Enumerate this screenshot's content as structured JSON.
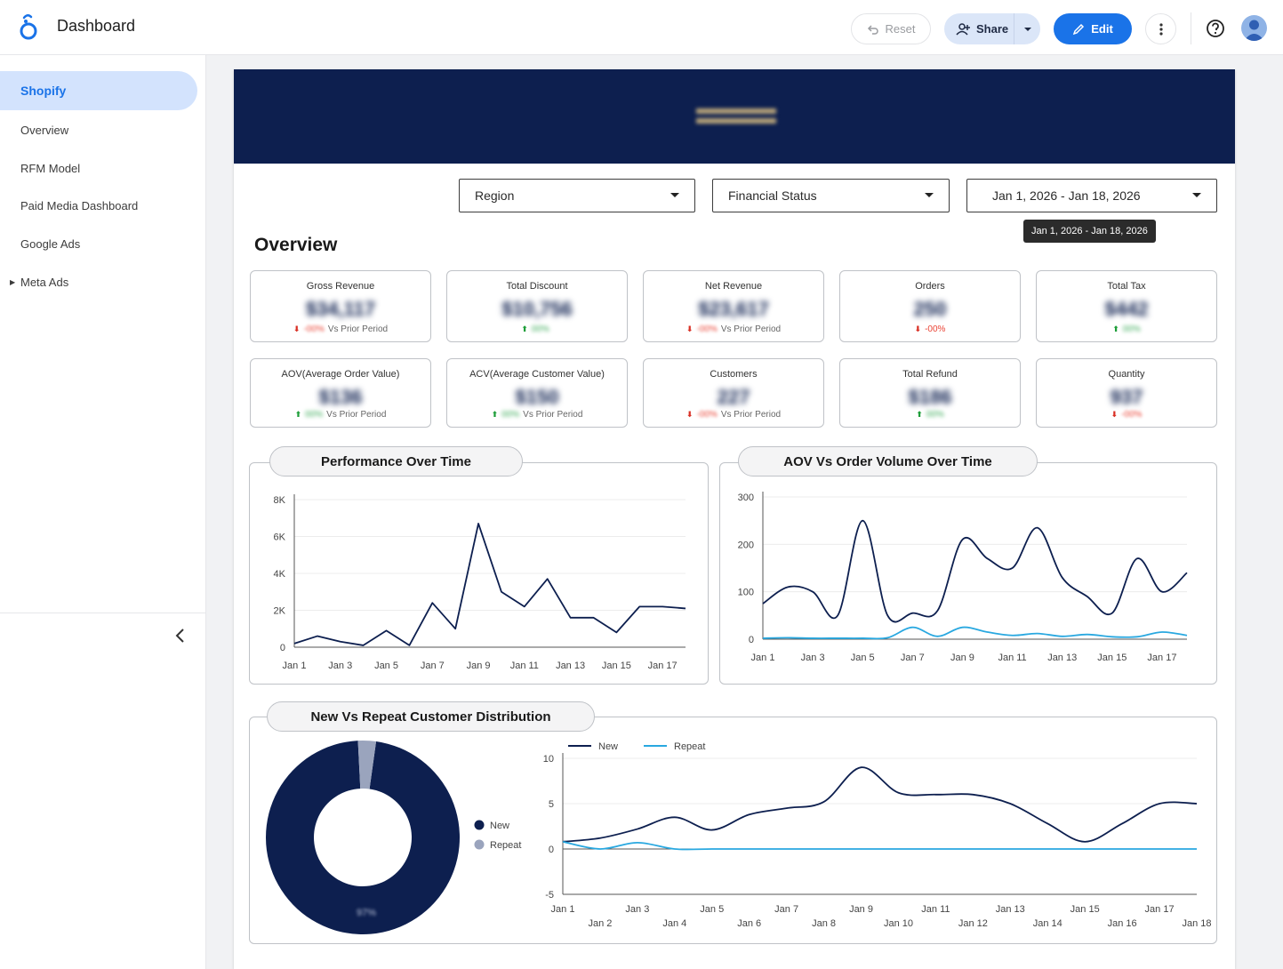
{
  "app": {
    "title": "Dashboard"
  },
  "toolbar": {
    "reset_label": "Reset",
    "share_label": "Share",
    "edit_label": "Edit"
  },
  "sidebar": {
    "items": [
      {
        "label": "Shopify",
        "active": true
      },
      {
        "label": "Overview"
      },
      {
        "label": "RFM Model"
      },
      {
        "label": "Paid Media Dashboard"
      },
      {
        "label": "Google Ads"
      },
      {
        "label": "Meta Ads",
        "expandable": true
      }
    ]
  },
  "filters": {
    "region": "Region",
    "financial_status": "Financial Status",
    "date_range": "Jan 1, 2026 - Jan 18, 2026",
    "tooltip": "Jan 1, 2026 - Jan 18, 2026"
  },
  "overview": {
    "title": "Overview",
    "kpis": [
      {
        "label": "Gross Revenue",
        "value": "$34,117",
        "change": "-00%",
        "direction": "down",
        "compare": "Vs Prior Period"
      },
      {
        "label": "Total Discount",
        "value": "$10,756",
        "change": "00%",
        "direction": "up",
        "compare": ""
      },
      {
        "label": "Net Revenue",
        "value": "$23,617",
        "change": "-00%",
        "direction": "down",
        "compare": "Vs Prior Period"
      },
      {
        "label": "Orders",
        "value": "250",
        "change": "-00%",
        "direction": "down",
        "compare": ""
      },
      {
        "label": "Total Tax",
        "value": "$442",
        "change": "00%",
        "direction": "up",
        "compare": ""
      },
      {
        "label": "AOV(Average Order Value)",
        "value": "$136",
        "change": "00%",
        "direction": "up",
        "compare": "Vs Prior Period"
      },
      {
        "label": "ACV(Average Customer Value)",
        "value": "$150",
        "change": "00%",
        "direction": "up",
        "compare": "Vs Prior Period"
      },
      {
        "label": "Customers",
        "value": "227",
        "change": "-00%",
        "direction": "down",
        "compare": "Vs Prior Period"
      },
      {
        "label": "Total Refund",
        "value": "$186",
        "change": "00%",
        "direction": "up",
        "compare": ""
      },
      {
        "label": "Quantity",
        "value": "937",
        "change": "-00%",
        "direction": "down",
        "compare": ""
      }
    ]
  },
  "colors": {
    "navy": "#0d1f4f",
    "accent": "#1a73e8",
    "light_line": "#29a8e0"
  },
  "chart_data": [
    {
      "type": "line",
      "title": "Performance Over Time",
      "x": [
        "Jan 1",
        "Jan 2",
        "Jan 3",
        "Jan 4",
        "Jan 5",
        "Jan 6",
        "Jan 7",
        "Jan 8",
        "Jan 9",
        "Jan 10",
        "Jan 11",
        "Jan 12",
        "Jan 13",
        "Jan 14",
        "Jan 15",
        "Jan 16",
        "Jan 17",
        "Jan 18"
      ],
      "x_ticks": [
        "Jan 1",
        "Jan 3",
        "Jan 5",
        "Jan 7",
        "Jan 9",
        "Jan 11",
        "Jan 13",
        "Jan 15",
        "Jan 17"
      ],
      "series": [
        {
          "values": [
            200,
            600,
            300,
            100,
            900,
            100,
            2400,
            1000,
            6700,
            3000,
            2200,
            3700,
            1600,
            1600,
            800,
            2200,
            2200,
            2100
          ]
        }
      ],
      "ylim": [
        0,
        8000
      ],
      "y_ticks": [
        "0",
        "2K",
        "4K",
        "6K",
        "8K"
      ],
      "grid": true
    },
    {
      "type": "line",
      "title": "AOV Vs Order Volume Over Time",
      "x": [
        "Jan 1",
        "Jan 2",
        "Jan 3",
        "Jan 4",
        "Jan 5",
        "Jan 6",
        "Jan 7",
        "Jan 8",
        "Jan 9",
        "Jan 10",
        "Jan 11",
        "Jan 12",
        "Jan 13",
        "Jan 14",
        "Jan 15",
        "Jan 16",
        "Jan 17",
        "Jan 18"
      ],
      "x_ticks": [
        "Jan 1",
        "Jan 3",
        "Jan 5",
        "Jan 7",
        "Jan 9",
        "Jan 11",
        "Jan 13",
        "Jan 15",
        "Jan 17"
      ],
      "series": [
        {
          "values": [
            75,
            110,
            100,
            50,
            250,
            50,
            55,
            60,
            210,
            170,
            150,
            235,
            130,
            90,
            55,
            170,
            100,
            140
          ]
        },
        {
          "values": [
            2,
            3,
            2,
            2,
            2,
            3,
            25,
            6,
            25,
            15,
            8,
            12,
            6,
            10,
            5,
            5,
            15,
            8
          ]
        }
      ],
      "ylim": [
        0,
        300
      ],
      "y_ticks": [
        "0",
        "100",
        "200",
        "300"
      ],
      "grid": true
    },
    {
      "type": "pie",
      "title": "New Vs Repeat Customer Distribution",
      "categories": [
        "New",
        "Repeat"
      ],
      "values": [
        97,
        3
      ],
      "center_label": "97%"
    },
    {
      "type": "line",
      "x": [
        "Jan 1",
        "Jan 2",
        "Jan 3",
        "Jan 4",
        "Jan 5",
        "Jan 6",
        "Jan 7",
        "Jan 8",
        "Jan 9",
        "Jan 10",
        "Jan 11",
        "Jan 12",
        "Jan 13",
        "Jan 14",
        "Jan 15",
        "Jan 16",
        "Jan 17",
        "Jan 18"
      ],
      "series": [
        {
          "name": "New",
          "values": [
            0.8,
            1.2,
            2.2,
            3.5,
            2.1,
            3.8,
            4.5,
            5.2,
            9.0,
            6.2,
            6.0,
            6.0,
            5.0,
            2.8,
            0.8,
            2.8,
            5.0,
            5.0
          ]
        },
        {
          "name": "Repeat",
          "values": [
            0.8,
            0.0,
            0.7,
            0.0,
            0.0,
            0.0,
            0.0,
            0.0,
            0.0,
            0.0,
            0.0,
            0.0,
            0.0,
            0.0,
            0.0,
            0.0,
            0.0,
            0.0
          ]
        }
      ],
      "ylim": [
        -5,
        10
      ],
      "y_ticks": [
        "-5",
        "0",
        "5",
        "10"
      ],
      "legend": "top-left",
      "grid": true
    }
  ]
}
